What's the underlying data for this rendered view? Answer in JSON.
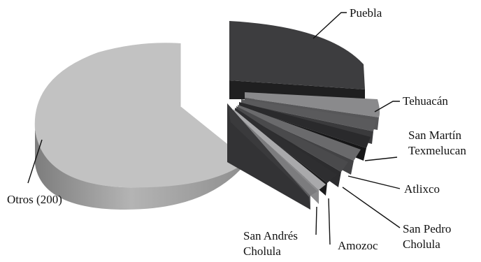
{
  "chart_data": {
    "type": "pie",
    "style": "3d-exploded",
    "title": "",
    "slices": [
      {
        "label": "Puebla",
        "value": 26,
        "color": "#3d3d3f"
      },
      {
        "label": "Tehuacán",
        "value": 5,
        "color": "#8a8a8c"
      },
      {
        "label": "San Martín Texmelucan",
        "value": 3,
        "color": "#5a5a5c"
      },
      {
        "label": "",
        "value": 2,
        "color": "#2a2a2c"
      },
      {
        "label": "",
        "value": 2,
        "color": "#6a6a6c"
      },
      {
        "label": "Atlixco",
        "value": 2,
        "color": "#4a4a4c"
      },
      {
        "label": "San Pedro Cholula",
        "value": 2,
        "color": "#2e2e30"
      },
      {
        "label": "Amozoc",
        "value": 2,
        "color": "#a9a9ab"
      },
      {
        "label": "San Andrés Cholula",
        "value": 3,
        "color": "#7c7c7e"
      },
      {
        "label": "",
        "value": 10,
        "color": "#3a3a3c"
      },
      {
        "label": "Otros (200)",
        "value": 43,
        "color": "#c2c2c2"
      }
    ],
    "legend": "none"
  }
}
